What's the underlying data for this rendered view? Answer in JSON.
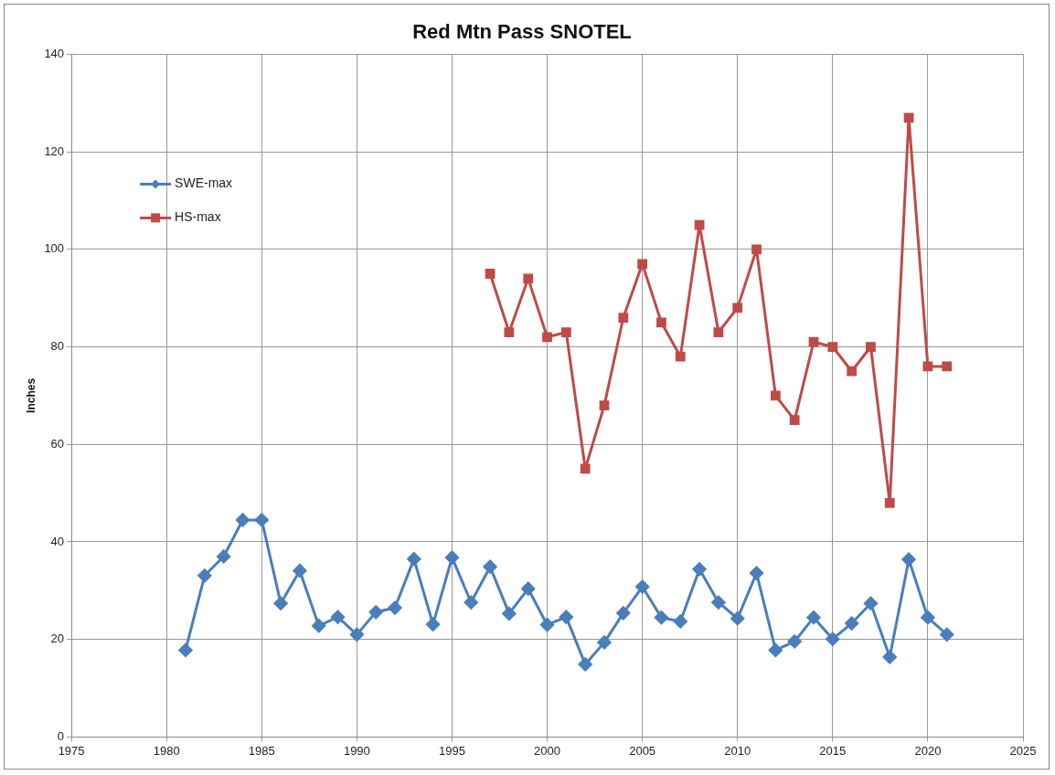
{
  "chart_data": {
    "type": "line",
    "title": "Red Mtn Pass SNOTEL",
    "ylabel": "Inches",
    "xlim": [
      1975,
      2025
    ],
    "xticks": [
      1975,
      1980,
      1985,
      1990,
      1995,
      2000,
      2005,
      2010,
      2015,
      2020,
      2025
    ],
    "ylim": [
      0,
      140
    ],
    "yticks": [
      0,
      20,
      40,
      60,
      80,
      100,
      120,
      140
    ],
    "grid": true,
    "legend": "top left",
    "line_style": "solid",
    "series": [
      {
        "name": "SWE-max",
        "color": "#4a7ebb",
        "marker": "diamond",
        "x": [
          1981,
          1982,
          1983,
          1984,
          1985,
          1986,
          1987,
          1988,
          1989,
          1990,
          1991,
          1992,
          1993,
          1994,
          1995,
          1996,
          1997,
          1998,
          1999,
          2000,
          2001,
          2002,
          2003,
          2004,
          2005,
          2006,
          2007,
          2008,
          2009,
          2010,
          2011,
          2012,
          2013,
          2014,
          2015,
          2016,
          2017,
          2018,
          2019,
          2020,
          2021
        ],
        "values": [
          17.8,
          33.1,
          37,
          44.5,
          44.5,
          27.4,
          34.1,
          22.8,
          24.6,
          21,
          25.6,
          26.5,
          36.5,
          23.1,
          36.8,
          27.6,
          34.9,
          25.3,
          30.4,
          23,
          24.6,
          14.9,
          19.4,
          25.4,
          30.8,
          24.5,
          23.7,
          34.4,
          27.6,
          24.3,
          33.6,
          17.8,
          19.6,
          24.5,
          20.1,
          23.3,
          27.4,
          16.4,
          36.4,
          24.5,
          21
        ]
      },
      {
        "name": "HS-max",
        "color": "#be4b48",
        "marker": "square",
        "x": [
          1997,
          1998,
          1999,
          2000,
          2001,
          2002,
          2003,
          2004,
          2005,
          2006,
          2007,
          2008,
          2009,
          2010,
          2011,
          2012,
          2013,
          2014,
          2015,
          2016,
          2017,
          2018,
          2019,
          2020,
          2021
        ],
        "values": [
          95,
          83,
          94,
          82,
          83,
          55,
          68,
          86,
          97,
          85,
          78,
          105,
          83,
          88,
          100,
          70,
          65,
          81,
          80,
          75,
          80,
          48,
          127,
          76,
          76
        ]
      }
    ]
  }
}
